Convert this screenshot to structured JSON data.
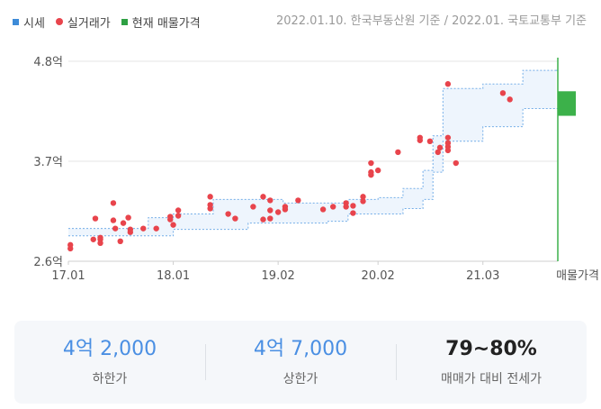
{
  "legend": {
    "market": {
      "label": "시세",
      "color": "#3d8bd8"
    },
    "actual": {
      "label": "실거래가",
      "color": "#e8444c"
    },
    "listing": {
      "label": "현재 매물가격",
      "color": "#2ea043"
    }
  },
  "source_note": "2022.01.10. 한국부동산원 기준 / 2022.01. 국토교통부 기준",
  "chart_data": {
    "type": "scatter",
    "x_axis": {
      "ticks": [
        "17.01",
        "18.01",
        "19.02",
        "20.02",
        "21.03"
      ],
      "end_label": "매물가격"
    },
    "y_axis": {
      "ticks": [
        {
          "value": 2.6,
          "label": "2.6억"
        },
        {
          "value": 3.7,
          "label": "3.7억"
        },
        {
          "value": 4.8,
          "label": "4.8억"
        }
      ],
      "range": [
        2.6,
        4.8
      ]
    },
    "market_band": [
      {
        "x": 17.0,
        "low": 2.88,
        "high": 2.96
      },
      {
        "x": 17.8,
        "low": 2.88,
        "high": 3.08
      },
      {
        "x": 18.05,
        "low": 2.95,
        "high": 3.12
      },
      {
        "x": 18.45,
        "low": 2.95,
        "high": 3.28
      },
      {
        "x": 18.8,
        "low": 3.02,
        "high": 3.28
      },
      {
        "x": 19.15,
        "low": 3.02,
        "high": 3.24
      },
      {
        "x": 19.6,
        "low": 3.04,
        "high": 3.24
      },
      {
        "x": 19.8,
        "low": 3.12,
        "high": 3.28
      },
      {
        "x": 20.1,
        "low": 3.12,
        "high": 3.3
      },
      {
        "x": 20.35,
        "low": 3.18,
        "high": 3.4
      },
      {
        "x": 20.55,
        "low": 3.28,
        "high": 3.6
      },
      {
        "x": 20.65,
        "low": 3.58,
        "high": 3.98
      },
      {
        "x": 20.75,
        "low": 3.92,
        "high": 4.5
      },
      {
        "x": 21.15,
        "low": 4.08,
        "high": 4.55
      },
      {
        "x": 21.55,
        "low": 4.28,
        "high": 4.7
      },
      {
        "x": 21.9,
        "low": 4.28,
        "high": 4.7
      }
    ],
    "actual_trades": [
      {
        "x": 17.02,
        "y": 2.74
      },
      {
        "x": 17.02,
        "y": 2.78
      },
      {
        "x": 17.25,
        "y": 2.84
      },
      {
        "x": 17.27,
        "y": 3.07
      },
      {
        "x": 17.32,
        "y": 2.8
      },
      {
        "x": 17.32,
        "y": 2.84
      },
      {
        "x": 17.32,
        "y": 2.86
      },
      {
        "x": 17.45,
        "y": 3.24
      },
      {
        "x": 17.45,
        "y": 3.05
      },
      {
        "x": 17.47,
        "y": 2.96
      },
      {
        "x": 17.52,
        "y": 2.82
      },
      {
        "x": 17.55,
        "y": 3.02
      },
      {
        "x": 17.6,
        "y": 3.08
      },
      {
        "x": 17.62,
        "y": 2.92
      },
      {
        "x": 17.62,
        "y": 2.95
      },
      {
        "x": 17.75,
        "y": 2.96
      },
      {
        "x": 17.88,
        "y": 2.96
      },
      {
        "x": 18.02,
        "y": 3.06
      },
      {
        "x": 18.02,
        "y": 3.09
      },
      {
        "x": 18.05,
        "y": 3.0
      },
      {
        "x": 18.1,
        "y": 3.1
      },
      {
        "x": 18.1,
        "y": 3.16
      },
      {
        "x": 18.42,
        "y": 3.18
      },
      {
        "x": 18.42,
        "y": 3.22
      },
      {
        "x": 18.42,
        "y": 3.31
      },
      {
        "x": 18.6,
        "y": 3.12
      },
      {
        "x": 18.67,
        "y": 3.07
      },
      {
        "x": 18.85,
        "y": 3.2
      },
      {
        "x": 18.95,
        "y": 3.06
      },
      {
        "x": 18.95,
        "y": 3.31
      },
      {
        "x": 19.02,
        "y": 3.07
      },
      {
        "x": 19.02,
        "y": 3.27
      },
      {
        "x": 19.02,
        "y": 3.16
      },
      {
        "x": 19.1,
        "y": 3.14
      },
      {
        "x": 19.17,
        "y": 3.17
      },
      {
        "x": 19.17,
        "y": 3.2
      },
      {
        "x": 19.3,
        "y": 3.27
      },
      {
        "x": 19.55,
        "y": 3.17
      },
      {
        "x": 19.65,
        "y": 3.2
      },
      {
        "x": 19.78,
        "y": 3.2
      },
      {
        "x": 19.78,
        "y": 3.24
      },
      {
        "x": 19.85,
        "y": 3.13
      },
      {
        "x": 19.85,
        "y": 3.21
      },
      {
        "x": 19.95,
        "y": 3.26
      },
      {
        "x": 19.95,
        "y": 3.31
      },
      {
        "x": 20.03,
        "y": 3.55
      },
      {
        "x": 20.03,
        "y": 3.58
      },
      {
        "x": 20.03,
        "y": 3.68
      },
      {
        "x": 20.1,
        "y": 3.6
      },
      {
        "x": 20.3,
        "y": 3.8
      },
      {
        "x": 20.52,
        "y": 3.93
      },
      {
        "x": 20.52,
        "y": 3.96
      },
      {
        "x": 20.62,
        "y": 3.92
      },
      {
        "x": 20.7,
        "y": 3.8
      },
      {
        "x": 20.72,
        "y": 3.85
      },
      {
        "x": 20.8,
        "y": 3.82
      },
      {
        "x": 20.8,
        "y": 3.86
      },
      {
        "x": 20.8,
        "y": 3.9
      },
      {
        "x": 20.8,
        "y": 3.96
      },
      {
        "x": 20.88,
        "y": 3.68
      },
      {
        "x": 20.8,
        "y": 4.55
      },
      {
        "x": 21.35,
        "y": 4.45
      },
      {
        "x": 21.42,
        "y": 4.38
      }
    ],
    "listing_price": {
      "low": 4.2,
      "high": 4.47
    },
    "grid": true
  },
  "summary": [
    {
      "value": "4억 2,000",
      "label": "하한가",
      "style": "blue"
    },
    {
      "value": "4억 7,000",
      "label": "상한가",
      "style": "blue"
    },
    {
      "value": "79~80%",
      "label": "매매가 대비 전세가",
      "style": "dark"
    }
  ]
}
